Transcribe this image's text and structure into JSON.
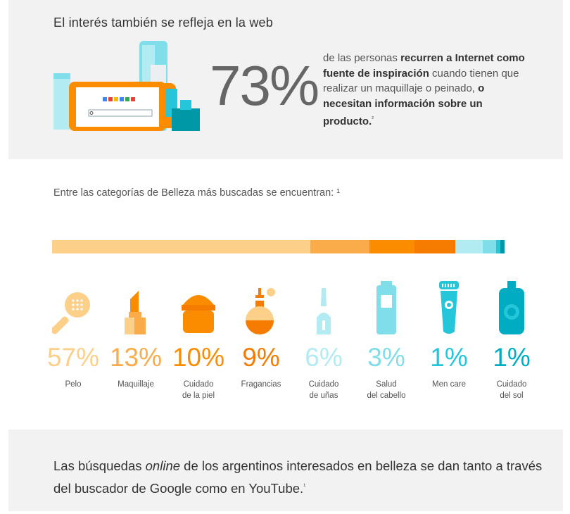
{
  "header": {
    "title": "El interés también se refleja en la web",
    "big_percent": "73%",
    "desc_parts": [
      "de las personas ",
      "recurren a Internet como fuente de inspiración",
      " cuando tienen que realizar un maquillaje o peinado, ",
      "o necesitan información sobre un producto.",
      "²"
    ]
  },
  "intro": "Entre las categorías de Belleza más buscadas se encuentran: ¹",
  "categories": [
    {
      "pct": "57%",
      "label": "Pelo",
      "icon": "hairbrush-icon",
      "color": "#fdd08a",
      "share": 57
    },
    {
      "pct": "13%",
      "label": "Maquillaje",
      "icon": "lipstick-icon",
      "color": "#fbac4a",
      "share": 13
    },
    {
      "pct": "10%",
      "label": "Cuidado\nde la piel",
      "icon": "cream-jar-icon",
      "color": "#fb8c00",
      "share": 10
    },
    {
      "pct": "9%",
      "label": "Fragancias",
      "icon": "perfume-icon",
      "color": "#f57c00",
      "share": 9
    },
    {
      "pct": "6%",
      "label": "Cuidado\nde uñas",
      "icon": "nail-polish-icon",
      "color": "#b2ebf2",
      "share": 6
    },
    {
      "pct": "3%",
      "label": "Salud\ndel cabello",
      "icon": "shampoo-bottle-icon",
      "color": "#80deea",
      "share": 3
    },
    {
      "pct": "1%",
      "label": "Men care",
      "icon": "shaver-icon",
      "color": "#26c6da",
      "share": 1
    },
    {
      "pct": "1%",
      "label": "Cuidado\ndel sol",
      "icon": "sunscreen-icon",
      "color": "#00acc1",
      "share": 1
    }
  ],
  "bar_colors": [
    "#fdd08a",
    "#fbac4a",
    "#fb8c00",
    "#f57c00",
    "#b2ebf2",
    "#80deea",
    "#26c6da",
    "#0097a7"
  ],
  "footer": {
    "parts": [
      "Las búsquedas ",
      "online",
      " de los argentinos interesados en belleza se dan tanto a través del buscador de Google como en YouTube.",
      "¹"
    ]
  }
}
